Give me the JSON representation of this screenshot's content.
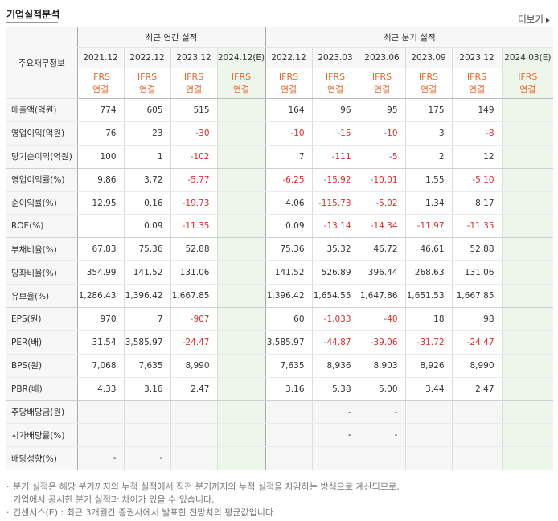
{
  "title": "기업실적분석",
  "more_label": "더보기",
  "more_arrow": "▸",
  "header": {
    "label_col": "주요재무정보",
    "annual_group": "최근 연간 실적",
    "quarterly_group": "최근 분기 실적",
    "annual_periods": [
      "2021.12",
      "2022.12",
      "2023.12",
      "2024.12(E)"
    ],
    "quarterly_periods": [
      "2022.12",
      "2023.03",
      "2023.06",
      "2023.09",
      "2023.12",
      "2024.03(E)"
    ],
    "basis_top": "IFRS",
    "basis_bottom": "연결"
  },
  "rows": [
    {
      "label": "매출액(억원)",
      "values": [
        "774",
        "605",
        "515",
        "",
        "164",
        "96",
        "95",
        "175",
        "149",
        ""
      ]
    },
    {
      "label": "영업이익(억원)",
      "values": [
        "76",
        "23",
        "-30",
        "",
        "-10",
        "-15",
        "-10",
        "3",
        "-8",
        ""
      ]
    },
    {
      "label": "당기순이익(억원)",
      "values": [
        "100",
        "1",
        "-102",
        "",
        "7",
        "-111",
        "-5",
        "2",
        "12",
        ""
      ]
    },
    {
      "label": "영업이익률(%)",
      "values": [
        "9.86",
        "3.72",
        "-5.77",
        "",
        "-6.25",
        "-15.92",
        "-10.01",
        "1.55",
        "-5.10",
        ""
      ]
    },
    {
      "label": "순이익률(%)",
      "values": [
        "12.95",
        "0.16",
        "-19.73",
        "",
        "4.06",
        "-115.73",
        "-5.02",
        "1.34",
        "8.17",
        ""
      ]
    },
    {
      "label": "ROE(%)",
      "values": [
        "",
        "0.09",
        "-11.35",
        "",
        "0.09",
        "-13.14",
        "-14.34",
        "-11.97",
        "-11.35",
        ""
      ]
    },
    {
      "label": "부채비율(%)",
      "values": [
        "67.83",
        "75.36",
        "52.88",
        "",
        "75.36",
        "35.32",
        "46.72",
        "46.61",
        "52.88",
        ""
      ]
    },
    {
      "label": "당좌비율(%)",
      "values": [
        "354.99",
        "141.52",
        "131.06",
        "",
        "141.52",
        "526.89",
        "396.44",
        "268.63",
        "131.06",
        ""
      ]
    },
    {
      "label": "유보율(%)",
      "values": [
        "1,286.43",
        "1,396.42",
        "1,667.85",
        "",
        "1,396.42",
        "1,654.55",
        "1,647.86",
        "1,651.53",
        "1,667.85",
        ""
      ]
    },
    {
      "label": "EPS(원)",
      "values": [
        "970",
        "7",
        "-907",
        "",
        "60",
        "-1,033",
        "-40",
        "18",
        "98",
        ""
      ]
    },
    {
      "label": "PER(배)",
      "values": [
        "31.54",
        "3,585.97",
        "-24.47",
        "",
        "3,585.97",
        "-44.87",
        "-39.06",
        "-31.72",
        "-24.47",
        ""
      ]
    },
    {
      "label": "BPS(원)",
      "values": [
        "7,068",
        "7,635",
        "8,990",
        "",
        "7,635",
        "8,936",
        "8,903",
        "8,926",
        "8,990",
        ""
      ]
    },
    {
      "label": "PBR(배)",
      "values": [
        "4.33",
        "3.16",
        "2.47",
        "",
        "3.16",
        "5.38",
        "5.00",
        "3.44",
        "2.47",
        ""
      ]
    },
    {
      "label": "주당배당금(원)",
      "values": [
        "",
        "",
        "",
        "",
        "",
        "-",
        "-",
        "",
        "",
        ""
      ]
    },
    {
      "label": "시가배당률(%)",
      "values": [
        "",
        "",
        "",
        "",
        "",
        "-",
        "-",
        "",
        "",
        ""
      ]
    },
    {
      "label": "배당성향(%)",
      "values": [
        "-",
        "-",
        "",
        "",
        "",
        "",
        "",
        "",
        "",
        ""
      ]
    }
  ],
  "notes": [
    "분기 실적은 해당 분기까지의 누적 실적에서 직전 분기까지의 누적 실적을 차감하는 방식으로 계산되므로,",
    "기업에서 공시한 분기 실적과 차이가 있을 수 있습니다.",
    "컨센서스(E) : 최근 3개월간 증권사에서 발표한 전망치의 평균값입니다."
  ],
  "colors": {
    "negative": "#e02b2b",
    "ifrs": "#e8692c",
    "estimate_bg": "#eef6ec"
  }
}
